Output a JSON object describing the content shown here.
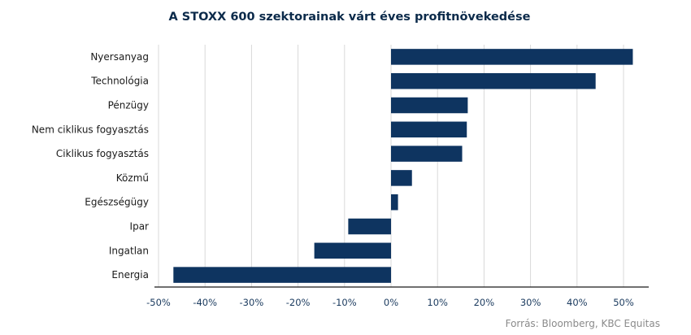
{
  "chart_data": {
    "type": "bar",
    "orientation": "horizontal",
    "title": "A STOXX 600 szektorainak várt éves profitnövekedése",
    "categories": [
      "Nyersanyag",
      "Technológia",
      "Pénzügy",
      "Nem ciklikus fogyasztás",
      "Ciklikus fogyasztás",
      "Közmű",
      "Egészségügy",
      "Ipar",
      "Ingatlan",
      "Energia"
    ],
    "values": [
      52,
      44,
      16.5,
      16.3,
      15.3,
      4.5,
      1.5,
      -9.2,
      -16.5,
      -46.8
    ],
    "xlim": [
      -50,
      55
    ],
    "xticks": [
      -50,
      -40,
      -30,
      -20,
      -10,
      0,
      10,
      20,
      30,
      40,
      50
    ],
    "xtick_labels": [
      "-50%",
      "-40%",
      "-30%",
      "-20%",
      "-10%",
      "0%",
      "10%",
      "20%",
      "30%",
      "40%",
      "50%"
    ],
    "xlabel": "",
    "ylabel": "",
    "grid": true,
    "bar_color": "#0e3460",
    "source": "Forrás: Bloomberg,  KBC Equitas"
  }
}
